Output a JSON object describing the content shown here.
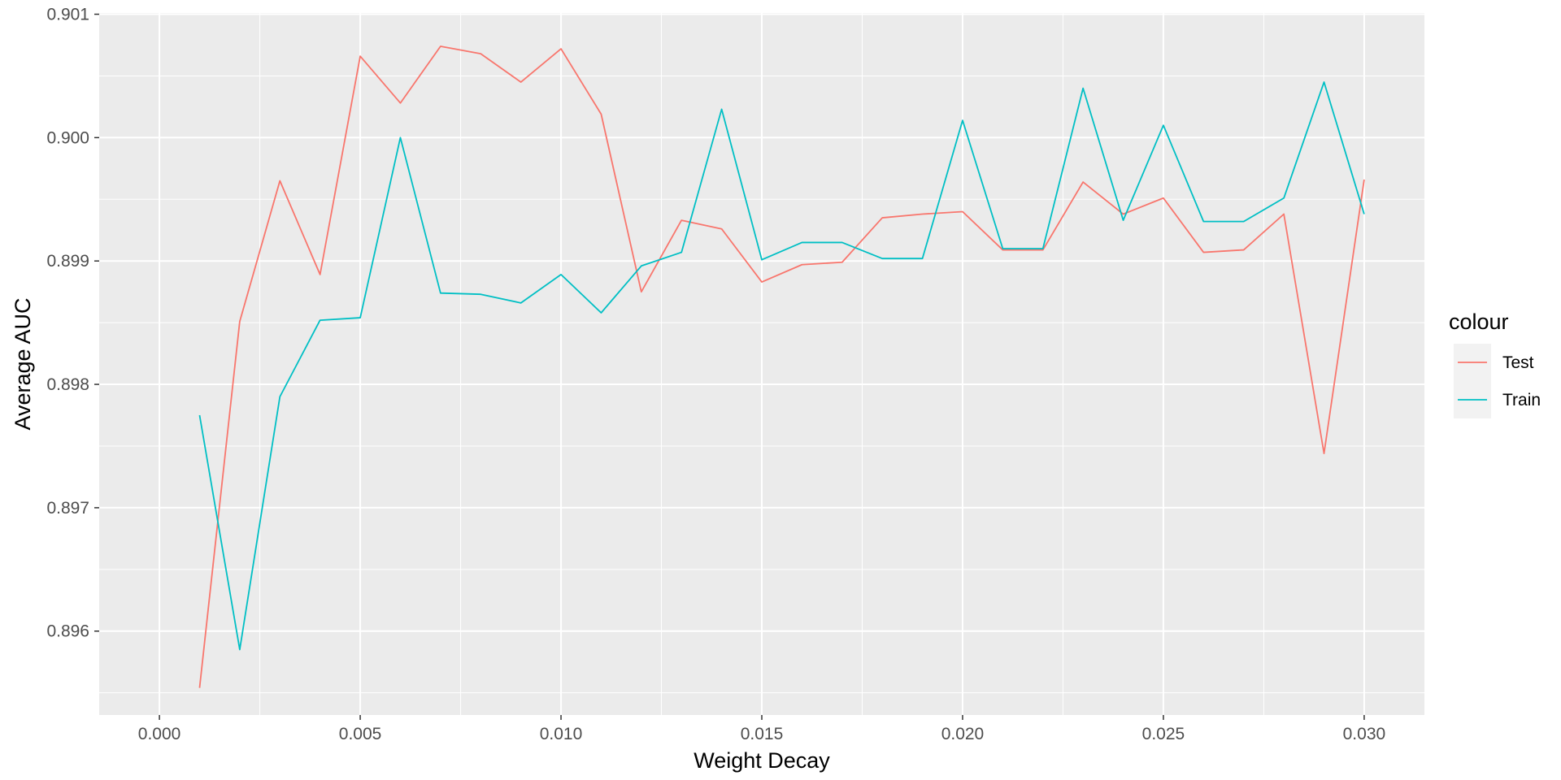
{
  "chart_data": {
    "type": "line",
    "title": "",
    "xlabel": "Weight Decay",
    "ylabel": "Average AUC",
    "xlim": [
      -0.0015,
      0.0315
    ],
    "ylim": [
      0.89532,
      0.90101
    ],
    "x_ticks": [
      {
        "value": 0.0,
        "label": "0.000"
      },
      {
        "value": 0.005,
        "label": "0.005"
      },
      {
        "value": 0.01,
        "label": "0.010"
      },
      {
        "value": 0.015,
        "label": "0.015"
      },
      {
        "value": 0.02,
        "label": "0.020"
      },
      {
        "value": 0.025,
        "label": "0.025"
      },
      {
        "value": 0.03,
        "label": "0.030"
      }
    ],
    "x_minor": [
      0.0025,
      0.0075,
      0.0125,
      0.0175,
      0.0225,
      0.0275
    ],
    "y_ticks": [
      {
        "value": 0.896,
        "label": "0.896"
      },
      {
        "value": 0.897,
        "label": "0.897"
      },
      {
        "value": 0.898,
        "label": "0.898"
      },
      {
        "value": 0.899,
        "label": "0.899"
      },
      {
        "value": 0.9,
        "label": "0.900"
      },
      {
        "value": 0.901,
        "label": "0.901"
      }
    ],
    "y_minor": [
      0.8955,
      0.8965,
      0.8975,
      0.8985,
      0.8995,
      0.9005
    ],
    "grid": true,
    "legend_title": "colour",
    "legend_position": "right",
    "series": [
      {
        "name": "Test",
        "color": "#F8766D",
        "x": [
          0.001,
          0.002,
          0.003,
          0.004,
          0.005,
          0.006,
          0.007,
          0.008,
          0.009,
          0.01,
          0.011,
          0.012,
          0.013,
          0.014,
          0.015,
          0.016,
          0.017,
          0.018,
          0.019,
          0.02,
          0.021,
          0.022,
          0.023,
          0.024,
          0.025,
          0.026,
          0.027,
          0.028,
          0.029,
          0.03
        ],
        "values": [
          0.89554,
          0.89851,
          0.89965,
          0.89889,
          0.90066,
          0.90028,
          0.90074,
          0.90068,
          0.90045,
          0.90072,
          0.90019,
          0.89875,
          0.89933,
          0.89926,
          0.89883,
          0.89897,
          0.89899,
          0.89935,
          0.89938,
          0.8994,
          0.89909,
          0.89909,
          0.89964,
          0.89938,
          0.89951,
          0.89907,
          0.89909,
          0.89938,
          0.89744,
          0.89966
        ]
      },
      {
        "name": "Train",
        "color": "#00BFC4",
        "x": [
          0.001,
          0.002,
          0.003,
          0.004,
          0.005,
          0.006,
          0.007,
          0.008,
          0.009,
          0.01,
          0.011,
          0.012,
          0.013,
          0.014,
          0.015,
          0.016,
          0.017,
          0.018,
          0.019,
          0.02,
          0.021,
          0.022,
          0.023,
          0.024,
          0.025,
          0.026,
          0.027,
          0.028,
          0.029,
          0.03
        ],
        "values": [
          0.89775,
          0.89585,
          0.8979,
          0.89852,
          0.89854,
          0.9,
          0.89874,
          0.89873,
          0.89866,
          0.89889,
          0.89858,
          0.89896,
          0.89907,
          0.90023,
          0.89901,
          0.89915,
          0.89915,
          0.89902,
          0.89902,
          0.90014,
          0.8991,
          0.8991,
          0.9004,
          0.89933,
          0.9001,
          0.89932,
          0.89932,
          0.89951,
          0.90045,
          0.89938
        ]
      }
    ]
  },
  "colors": {
    "panel_background": "#EBEBEB",
    "grid_major": "#FFFFFF",
    "legend_key_background": "#F2F2F2"
  }
}
